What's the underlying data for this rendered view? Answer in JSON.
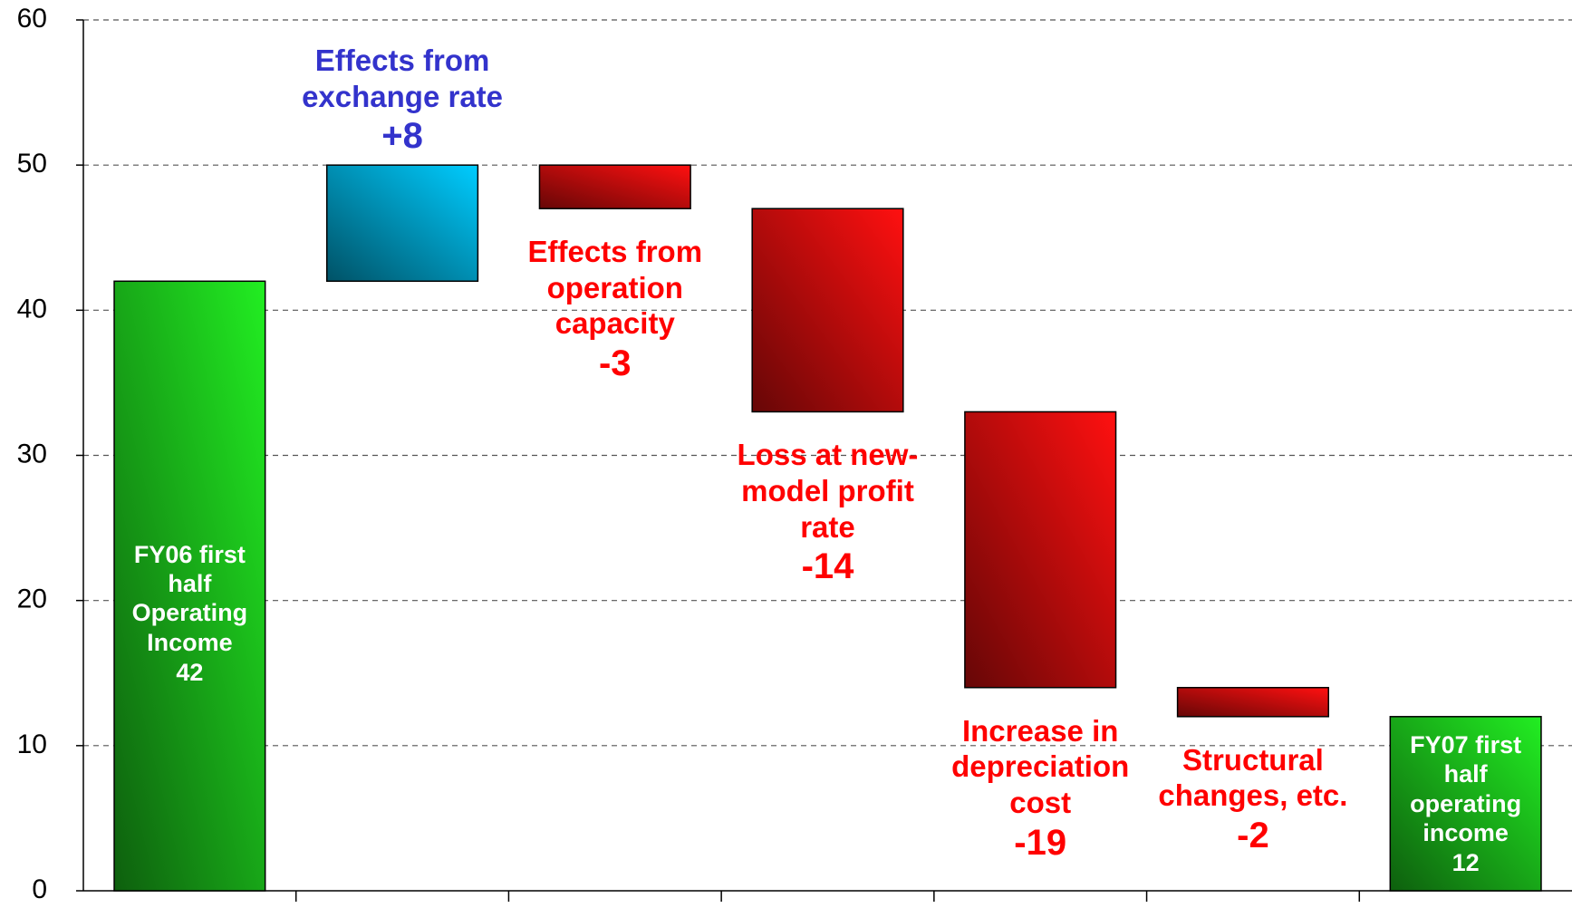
{
  "chart_data": {
    "type": "waterfall",
    "categories": [
      "FY06 first half Operating Income",
      "Effects from exchange rate",
      "Effects from operation capacity",
      "Loss at new-model profit rate",
      "Increase in depreciation cost",
      "Structural changes, etc.",
      "FY07 first half operating income"
    ],
    "values": [
      42,
      8,
      -3,
      -14,
      -19,
      -2,
      12
    ],
    "value_labels": [
      "42",
      "+8",
      "-3",
      "-14",
      "-19",
      "-2",
      "12"
    ],
    "is_total": [
      true,
      false,
      false,
      false,
      false,
      false,
      true
    ],
    "colors": {
      "total": "#22ee22",
      "increase": "#00ccff",
      "decrease": "#ff1010"
    },
    "label_colors": {
      "total": "#ffffff",
      "increase": "#3333cc",
      "decrease": "#ff0000"
    },
    "ylim": [
      0,
      60
    ],
    "yticks": [
      0,
      10,
      20,
      30,
      40,
      50,
      60
    ],
    "grid": true
  }
}
